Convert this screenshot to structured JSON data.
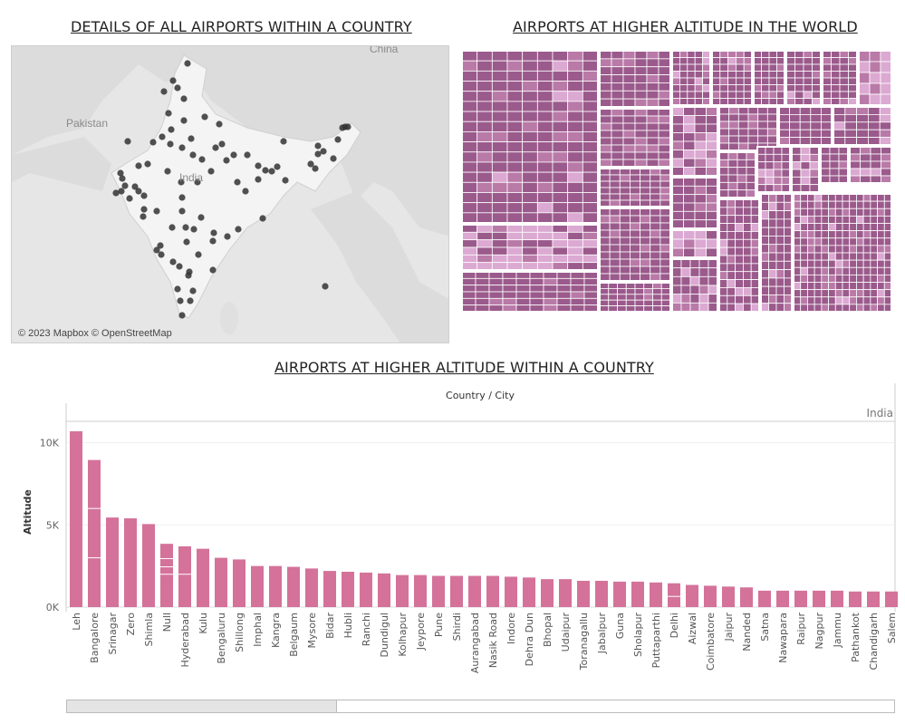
{
  "map_panel": {
    "title": "DETAILS OF ALL AIRPORTS WITHIN A COUNTRY",
    "attribution": "© 2023 Mapbox © OpenStreetMap",
    "labels": {
      "pakistan": "Pakistan",
      "india": "India",
      "china": "China"
    },
    "colors": {
      "land_focus": "#f4f4f4",
      "land_other": "#dcdcdc",
      "water": "#e8e8e8",
      "dot": "#333333"
    }
  },
  "treemap_panel": {
    "title": "AIRPORTS  AT HIGHER ALTITUDE IN THE WORLD",
    "colors": {
      "dark": "#9b5a8c",
      "mid": "#b97aa8",
      "light": "#dba9d2",
      "border": "#ffffff"
    }
  },
  "bar_panel": {
    "title": "AIRPORTS AT HIGHER ALTITUDE WITHIN A COUNTRY"
  },
  "chart_data": {
    "type": "bar",
    "header": "Country / City",
    "pane_label": "India",
    "ylabel": "Altitude",
    "ylim": [
      0,
      11300
    ],
    "yticks": [
      0,
      5000,
      10000
    ],
    "ytick_labels": [
      "0K",
      "5K",
      "10K"
    ],
    "bar_color": "#d4729a",
    "categories": [
      "Leh",
      "Bangalore",
      "Srinagar",
      "Zero",
      "Shimla",
      "Null",
      "Hyderabad",
      "Kulu",
      "Bengaluru",
      "Shillong",
      "Imphal",
      "Kangra",
      "Belgaum",
      "Mysore",
      "Bidar",
      "Hubli",
      "Ranchi",
      "Dundigul",
      "Kolhapur",
      "Jeypore",
      "Pune",
      "Shirdi",
      "Aurangabad",
      "Nasik Road",
      "Indore",
      "Dehra Dun",
      "Bhopal",
      "Udaipur",
      "Toranagallu",
      "Jabalpur",
      "Guna",
      "Sholapur",
      "Puttaparthi",
      "Delhi",
      "Aizwal",
      "Coimbatore",
      "Jaipur",
      "Nanded",
      "Satna",
      "Nawapara",
      "Raipur",
      "Nagpur",
      "Jammu",
      "Pathankot",
      "Chandigarh",
      "Salem"
    ],
    "values": [
      10700,
      8950,
      5450,
      5400,
      5050,
      3850,
      3700,
      3550,
      3000,
      2900,
      2500,
      2500,
      2450,
      2350,
      2200,
      2150,
      2100,
      2050,
      1950,
      1950,
      1900,
      1900,
      1900,
      1900,
      1850,
      1800,
      1700,
      1700,
      1600,
      1600,
      1550,
      1550,
      1500,
      1450,
      1350,
      1300,
      1250,
      1200,
      1000,
      1000,
      1000,
      1000,
      1000,
      950,
      950,
      950
    ],
    "segments": {
      "Bangalore": [
        3000,
        3000,
        2950
      ],
      "Null": [
        2000,
        450,
        500,
        900
      ],
      "Hyderabad": [
        2000,
        1700
      ],
      "Delhi": [
        650,
        800
      ]
    }
  }
}
